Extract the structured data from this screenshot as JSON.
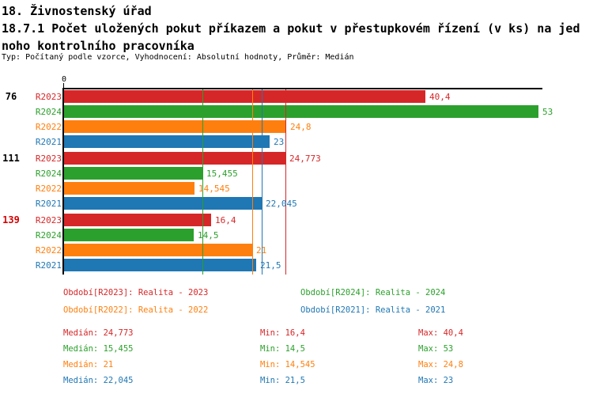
{
  "header": {
    "title_line1": "18. Živnostenský úřad",
    "title_line2": "18.7.1 Počet uložených pokut příkazem a pokut v přestupkovém řízení (v ks) na jed",
    "title_line3": "noho kontrolního pracovníka",
    "meta_line": "Typ: Počítaný podle vzorce, Vyhodnocení: Absolutní hodnoty, Průměr: Medián"
  },
  "colors": {
    "R2023": "#d62728",
    "R2024": "#2ca02c",
    "R2022": "#ff7f0e",
    "R2021": "#1f77b4",
    "axis": "#000000",
    "highlight_category": "#d40000"
  },
  "chart_data": {
    "type": "bar",
    "orientation": "horizontal",
    "title": "18.7.1 Počet uložených pokut příkazem a pokut v přestupkovém řízení (v ks) na jednoho kontrolního pracovníka",
    "subtitle": "Typ: Počítaný podle vzorce, Vyhodnocení: Absolutní hodnoty, Průměr: Medián",
    "axis_zero_label": "0",
    "xlim": [
      0,
      53.4
    ],
    "grid": false,
    "categories": [
      "76",
      "111",
      "139"
    ],
    "category_colors": [
      "#000000",
      "#000000",
      "#d40000"
    ],
    "series": [
      {
        "name": "R2023",
        "color": "#d62728",
        "values": [
          40.4,
          24.773,
          16.4
        ],
        "value_labels": [
          "40,4",
          "24,773",
          "16,4"
        ]
      },
      {
        "name": "R2024",
        "color": "#2ca02c",
        "values": [
          53,
          15.455,
          14.5
        ],
        "value_labels": [
          "53",
          "15,455",
          "14,5"
        ]
      },
      {
        "name": "R2022",
        "color": "#ff7f0e",
        "values": [
          24.8,
          14.545,
          21
        ],
        "value_labels": [
          "24,8",
          "14,545",
          "21"
        ]
      },
      {
        "name": "R2021",
        "color": "#1f77b4",
        "values": [
          23,
          22.045,
          21.5
        ],
        "value_labels": [
          "23",
          "22,045",
          "21,5"
        ]
      }
    ],
    "median_lines": [
      {
        "series": "R2023",
        "value": 24.773
      },
      {
        "series": "R2024",
        "value": 15.455
      },
      {
        "series": "R2022",
        "value": 21
      },
      {
        "series": "R2021",
        "value": 22.045
      }
    ],
    "legend_position": "bottom"
  },
  "legend": {
    "items": [
      {
        "series": "R2023",
        "label": "Období[R2023]: Realita - 2023"
      },
      {
        "series": "R2024",
        "label": "Období[R2024]: Realita - 2024"
      },
      {
        "series": "R2022",
        "label": "Období[R2022]: Realita - 2022"
      },
      {
        "series": "R2021",
        "label": "Období[R2021]: Realita - 2021"
      }
    ]
  },
  "stats": {
    "rows": [
      {
        "series": "R2023",
        "median": "Medián: 24,773",
        "min": "Min: 16,4",
        "max": "Max: 40,4"
      },
      {
        "series": "R2024",
        "median": "Medián: 15,455",
        "min": "Min: 14,5",
        "max": "Max: 53"
      },
      {
        "series": "R2022",
        "median": "Medián: 21",
        "min": "Min: 14,545",
        "max": "Max: 24,8"
      },
      {
        "series": "R2021",
        "median": "Medián: 22,045",
        "min": "Min: 21,5",
        "max": "Max: 23"
      }
    ]
  }
}
